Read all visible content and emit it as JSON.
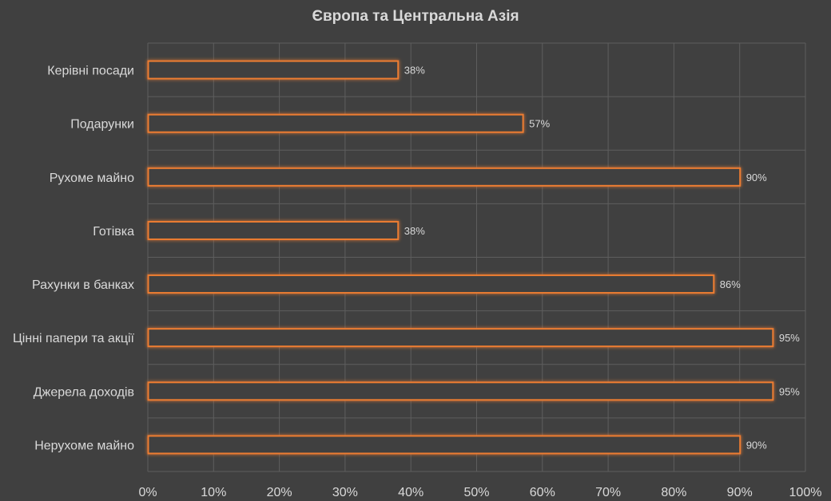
{
  "chart_data": {
    "type": "bar",
    "orientation": "horizontal",
    "title": "Європа та Центральна Азія",
    "categories": [
      "Керівні посади",
      "Подарунки",
      "Рухоме майно",
      "Готівка",
      "Рахунки в банках",
      "Цінні папери та акції",
      "Джерела доходів",
      "Нерухоме майно"
    ],
    "values": [
      38,
      57,
      90,
      38,
      86,
      95,
      95,
      90
    ],
    "value_labels": [
      "38%",
      "57%",
      "90%",
      "38%",
      "86%",
      "95%",
      "95%",
      "90%"
    ],
    "xlim": [
      0,
      100
    ],
    "x_ticks": [
      "0%",
      "10%",
      "20%",
      "30%",
      "40%",
      "50%",
      "60%",
      "70%",
      "80%",
      "90%",
      "100%"
    ],
    "grid": true,
    "legend": "none",
    "colors": {
      "background": "#404040",
      "bar_fill": "#404040",
      "bar_outline": "#ed7d31",
      "grid": "#5e5e5e",
      "text": "#d9d9d9"
    }
  }
}
